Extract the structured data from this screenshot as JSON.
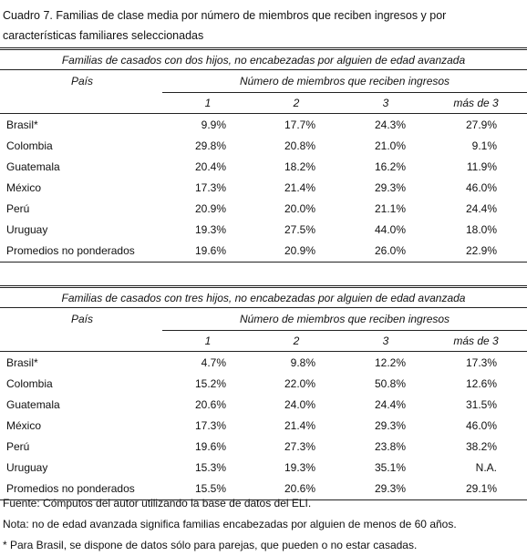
{
  "title": "Cuadro 7. Familias de clase media por número de miembros que reciben ingresos y por características familiares seleccionadas",
  "tables": [
    {
      "caption": "Familias de casados con dos hijos, no encabezadas por alguien de edad avanzada",
      "row_header": "País",
      "column_group": "Número de miembros que reciben ingresos",
      "columns": [
        "1",
        "2",
        "3",
        "más de 3"
      ],
      "rows": [
        [
          "Brasil*",
          "9.9%",
          "17.7%",
          "24.3%",
          "27.9%"
        ],
        [
          "Colombia",
          "29.8%",
          "20.8%",
          "21.0%",
          "9.1%"
        ],
        [
          "Guatemala",
          "20.4%",
          "18.2%",
          "16.2%",
          "11.9%"
        ],
        [
          "México",
          "17.3%",
          "21.4%",
          "29.3%",
          "46.0%"
        ],
        [
          "Perú",
          "20.9%",
          "20.0%",
          "21.1%",
          "24.4%"
        ],
        [
          "Uruguay",
          "19.3%",
          "27.5%",
          "44.0%",
          "18.0%"
        ],
        [
          "Promedios no ponderados",
          "19.6%",
          "20.9%",
          "26.0%",
          "22.9%"
        ]
      ]
    },
    {
      "caption": "Familias de casados con tres hijos, no encabezadas por alguien de edad avanzada",
      "row_header": "País",
      "column_group": "Número de miembros que reciben ingresos",
      "columns": [
        "1",
        "2",
        "3",
        "más de 3"
      ],
      "rows": [
        [
          "Brasil*",
          "4.7%",
          "9.8%",
          "12.2%",
          "17.3%"
        ],
        [
          "Colombia",
          "15.2%",
          "22.0%",
          "50.8%",
          "12.6%"
        ],
        [
          "Guatemala",
          "20.6%",
          "24.0%",
          "24.4%",
          "31.5%"
        ],
        [
          "México",
          "17.3%",
          "21.4%",
          "29.3%",
          "46.0%"
        ],
        [
          "Perú",
          "19.6%",
          "27.3%",
          "23.8%",
          "38.2%"
        ],
        [
          "Uruguay",
          "15.3%",
          "19.3%",
          "35.1%",
          "N.A."
        ],
        [
          "Promedios no ponderados",
          "15.5%",
          "20.6%",
          "29.3%",
          "29.1%"
        ]
      ]
    }
  ],
  "notes": [
    "Fuente: Cómputos del autor utilizando la base de datos del ELI.",
    "Nota: no de edad avanzada significa familias encabezadas por alguien de menos de 60 años.",
    "* Para Brasil, se dispone de datos sólo para parejas, que pueden o no estar casadas."
  ]
}
